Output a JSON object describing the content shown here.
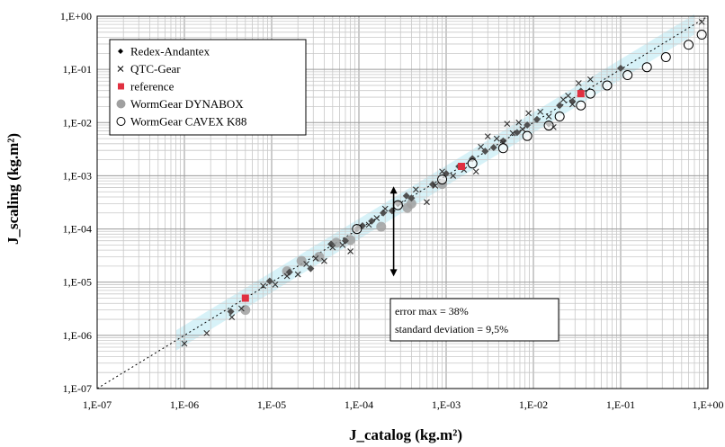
{
  "chart_data": {
    "type": "scatter",
    "title": "",
    "xlabel": "J_catalog (kg.m²)",
    "ylabel": "J_scaling (kg.m²)",
    "x_scale": "log",
    "y_scale": "log",
    "xlim": [
      1e-07,
      1
    ],
    "ylim": [
      1e-07,
      1
    ],
    "x_ticks": [
      "1,E-07",
      "1,E-06",
      "1,E-05",
      "1,E-04",
      "1,E-03",
      "1,E-02",
      "1,E-01",
      "1,E+00"
    ],
    "y_ticks": [
      "1,E-07",
      "1,E-06",
      "1,E-05",
      "1,E-04",
      "1,E-03",
      "1,E-02",
      "1,E-01",
      "1,E+00"
    ],
    "grid": true,
    "legend_position": "top-left",
    "reference_line": "y = x (dotted)",
    "confidence_band": "light blue band around y = x",
    "annotation": {
      "lines": [
        "error max = 38%",
        "standard deviation = 9,5%"
      ],
      "arrow_x": 0.00025,
      "arrow_y_range": [
        1.28e-05,
        0.00063
      ]
    },
    "colors": {
      "band": "#c9eef5",
      "redex": "#505050",
      "qtc": "#303030",
      "reference": "#e03040",
      "dynabox": "#a0a0a0",
      "cavex": "#000000",
      "grid": "#c8c8c8"
    },
    "series": [
      {
        "name": "Redex-Andantex",
        "marker": "diamond",
        "points": [
          [
            3.4e-06,
            2.8e-06
          ],
          [
            9.5e-06,
            1.05e-05
          ],
          [
            1.6e-05,
            1.55e-05
          ],
          [
            2.8e-05,
            1.8e-05
          ],
          [
            4.8e-05,
            5.2e-05
          ],
          [
            7e-05,
            6e-05
          ],
          [
            9.5e-05,
            0.0001
          ],
          [
            0.00011,
            0.000115
          ],
          [
            0.00014,
            0.00014
          ],
          [
            0.00019,
            0.0002
          ],
          [
            0.00024,
            0.00022
          ],
          [
            0.00028,
            0.0003
          ],
          [
            0.00035,
            0.00042
          ],
          [
            0.0004,
            0.00038
          ],
          [
            0.0007,
            0.00069
          ],
          [
            0.001,
            0.0011
          ],
          [
            0.0014,
            0.0015
          ],
          [
            0.002,
            0.0021
          ],
          [
            0.0028,
            0.0029
          ],
          [
            0.0035,
            0.0034
          ],
          [
            0.0045,
            0.0045
          ],
          [
            0.0065,
            0.0065
          ],
          [
            0.0085,
            0.009
          ],
          [
            0.011,
            0.0115
          ],
          [
            0.015,
            0.0095
          ],
          [
            0.02,
            0.021
          ],
          [
            0.028,
            0.025
          ],
          [
            0.035,
            0.039
          ],
          [
            0.1,
            0.105
          ]
        ]
      },
      {
        "name": "QTC-Gear",
        "marker": "x",
        "points": [
          [
            1e-06,
            7e-07
          ],
          [
            1.8e-06,
            1.1e-06
          ],
          [
            3.5e-06,
            2.2e-06
          ],
          [
            4.5e-06,
            3.2e-06
          ],
          [
            8e-06,
            8.5e-06
          ],
          [
            1.1e-05,
            9e-06
          ],
          [
            1.5e-05,
            1.3e-05
          ],
          [
            2e-05,
            1.4e-05
          ],
          [
            2.5e-05,
            2.2e-05
          ],
          [
            3.2e-05,
            2.8e-05
          ],
          [
            4e-05,
            2.5e-05
          ],
          [
            5e-05,
            4.5e-05
          ],
          [
            6.5e-05,
            5e-05
          ],
          [
            8e-05,
            3.8e-05
          ],
          [
            0.0001,
            0.00011
          ],
          [
            0.00013,
            0.00012
          ],
          [
            0.00016,
            0.00016
          ],
          [
            0.0002,
            0.00024
          ],
          [
            0.0003,
            0.0003
          ],
          [
            0.00045,
            0.00055
          ],
          [
            0.0006,
            0.00032
          ],
          [
            0.00075,
            0.00065
          ],
          [
            0.0009,
            0.0012
          ],
          [
            0.0012,
            0.001
          ],
          [
            0.0016,
            0.0013
          ],
          [
            0.0022,
            0.0012
          ],
          [
            0.0025,
            0.0035
          ],
          [
            0.003,
            0.0055
          ],
          [
            0.0038,
            0.005
          ],
          [
            0.0045,
            0.0042
          ],
          [
            0.005,
            0.0095
          ],
          [
            0.0058,
            0.0063
          ],
          [
            0.0068,
            0.01
          ],
          [
            0.0075,
            0.0075
          ],
          [
            0.0088,
            0.015
          ],
          [
            0.012,
            0.016
          ],
          [
            0.015,
            0.013
          ],
          [
            0.017,
            0.0082
          ],
          [
            0.022,
            0.027
          ],
          [
            0.025,
            0.032
          ],
          [
            0.028,
            0.022
          ],
          [
            0.033,
            0.055
          ],
          [
            0.045,
            0.065
          ],
          [
            0.85,
            0.78
          ]
        ]
      },
      {
        "name": "reference",
        "marker": "square",
        "points": [
          [
            5e-06,
            5e-06
          ],
          [
            0.0015,
            0.0015
          ],
          [
            0.035,
            0.035
          ]
        ]
      },
      {
        "name": "WormGear DYNABOX",
        "marker": "circle-filled",
        "points": [
          [
            5e-06,
            3e-06
          ],
          [
            1.5e-05,
            1.6e-05
          ],
          [
            2.2e-05,
            2.5e-05
          ],
          [
            3.5e-05,
            3e-05
          ],
          [
            5.5e-05,
            5.5e-05
          ],
          [
            8e-05,
            6.2e-05
          ],
          [
            0.00018,
            0.00011
          ],
          [
            0.00036,
            0.00025
          ],
          [
            0.0004,
            0.0003
          ],
          [
            0.0009,
            0.0007
          ]
        ]
      },
      {
        "name": "WormGear CAVEX K88",
        "marker": "circle-open",
        "points": [
          [
            9.5e-05,
            0.0001
          ],
          [
            0.00028,
            0.00028
          ],
          [
            0.0009,
            0.00085
          ],
          [
            0.002,
            0.0017
          ],
          [
            0.0045,
            0.0033
          ],
          [
            0.0085,
            0.0056
          ],
          [
            0.015,
            0.0088
          ],
          [
            0.02,
            0.013
          ],
          [
            0.035,
            0.021
          ],
          [
            0.045,
            0.035
          ],
          [
            0.07,
            0.05
          ],
          [
            0.12,
            0.078
          ],
          [
            0.2,
            0.11
          ],
          [
            0.33,
            0.17
          ],
          [
            0.6,
            0.29
          ],
          [
            0.85,
            0.45
          ]
        ]
      }
    ]
  }
}
